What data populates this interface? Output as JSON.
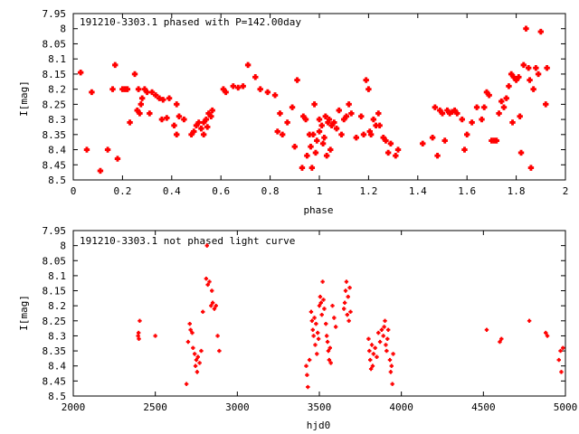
{
  "chart_data": [
    {
      "type": "scatter",
      "title": "191210-3303.1 phased with P=142.00day",
      "xlabel": "phase",
      "ylabel": "I[mag]",
      "xlim": [
        0,
        2
      ],
      "ylim": [
        8.5,
        7.95
      ],
      "y_inverted": true,
      "xticks": [
        "0",
        "0.2",
        "0.4",
        "0.6",
        "0.8",
        "1",
        "1.2",
        "1.4",
        "1.6",
        "1.8",
        "2"
      ],
      "yticks": [
        "7.95",
        "8",
        "8.05",
        "8.1",
        "8.15",
        "8.2",
        "8.25",
        "8.3",
        "8.35",
        "8.4",
        "8.45",
        "8.5"
      ],
      "marker_color": "#ff0000",
      "marker_size": "large",
      "points": [
        [
          0.03,
          8.145
        ],
        [
          0.055,
          8.4
        ],
        [
          0.075,
          8.21
        ],
        [
          0.11,
          8.47
        ],
        [
          0.14,
          8.4
        ],
        [
          0.16,
          8.2
        ],
        [
          0.17,
          8.12
        ],
        [
          0.18,
          8.43
        ],
        [
          0.2,
          8.2
        ],
        [
          0.21,
          8.2
        ],
        [
          0.22,
          8.2
        ],
        [
          0.23,
          8.31
        ],
        [
          0.25,
          8.15
        ],
        [
          0.26,
          8.27
        ],
        [
          0.265,
          8.2
        ],
        [
          0.27,
          8.28
        ],
        [
          0.275,
          8.25
        ],
        [
          0.28,
          8.23
        ],
        [
          0.29,
          8.2
        ],
        [
          0.3,
          8.21
        ],
        [
          0.31,
          8.28
        ],
        [
          0.32,
          8.21
        ],
        [
          0.335,
          8.22
        ],
        [
          0.35,
          8.23
        ],
        [
          0.36,
          8.3
        ],
        [
          0.365,
          8.235
        ],
        [
          0.38,
          8.295
        ],
        [
          0.39,
          8.23
        ],
        [
          0.41,
          8.32
        ],
        [
          0.42,
          8.25
        ],
        [
          0.42,
          8.35
        ],
        [
          0.43,
          8.29
        ],
        [
          0.45,
          8.3
        ],
        [
          0.48,
          8.35
        ],
        [
          0.49,
          8.34
        ],
        [
          0.5,
          8.32
        ],
        [
          0.51,
          8.31
        ],
        [
          0.52,
          8.33
        ],
        [
          0.53,
          8.35
        ],
        [
          0.53,
          8.31
        ],
        [
          0.54,
          8.3
        ],
        [
          0.545,
          8.325
        ],
        [
          0.55,
          8.28
        ],
        [
          0.56,
          8.29
        ],
        [
          0.565,
          8.27
        ],
        [
          0.61,
          8.2
        ],
        [
          0.62,
          8.21
        ],
        [
          0.65,
          8.19
        ],
        [
          0.67,
          8.195
        ],
        [
          0.69,
          8.19
        ],
        [
          0.71,
          8.12
        ],
        [
          0.74,
          8.16
        ],
        [
          0.76,
          8.2
        ],
        [
          0.79,
          8.21
        ],
        [
          0.82,
          8.22
        ],
        [
          0.83,
          8.34
        ],
        [
          0.84,
          8.28
        ],
        [
          0.85,
          8.35
        ],
        [
          0.87,
          8.31
        ],
        [
          0.89,
          8.26
        ],
        [
          0.9,
          8.39
        ],
        [
          0.91,
          8.17
        ],
        [
          0.93,
          8.46
        ],
        [
          0.935,
          8.29
        ],
        [
          0.945,
          8.3
        ],
        [
          0.95,
          8.42
        ],
        [
          0.96,
          8.35
        ],
        [
          0.965,
          8.39
        ],
        [
          0.97,
          8.46
        ],
        [
          0.975,
          8.35
        ],
        [
          0.98,
          8.25
        ],
        [
          0.985,
          8.41
        ],
        [
          0.99,
          8.37
        ],
        [
          1.0,
          8.34
        ],
        [
          1.0,
          8.3
        ],
        [
          1.01,
          8.32
        ],
        [
          1.015,
          8.38
        ],
        [
          1.02,
          8.36
        ],
        [
          1.025,
          8.29
        ],
        [
          1.03,
          8.42
        ],
        [
          1.035,
          8.31
        ],
        [
          1.04,
          8.3
        ],
        [
          1.045,
          8.4
        ],
        [
          1.05,
          8.32
        ],
        [
          1.06,
          8.31
        ],
        [
          1.07,
          8.33
        ],
        [
          1.08,
          8.27
        ],
        [
          1.09,
          8.35
        ],
        [
          1.1,
          8.3
        ],
        [
          1.11,
          8.29
        ],
        [
          1.12,
          8.25
        ],
        [
          1.13,
          8.28
        ],
        [
          1.15,
          8.36
        ],
        [
          1.17,
          8.29
        ],
        [
          1.18,
          8.35
        ],
        [
          1.19,
          8.17
        ],
        [
          1.2,
          8.2
        ],
        [
          1.205,
          8.34
        ],
        [
          1.21,
          8.35
        ],
        [
          1.22,
          8.3
        ],
        [
          1.23,
          8.32
        ],
        [
          1.24,
          8.28
        ],
        [
          1.245,
          8.32
        ],
        [
          1.26,
          8.36
        ],
        [
          1.27,
          8.37
        ],
        [
          1.28,
          8.41
        ],
        [
          1.29,
          8.38
        ],
        [
          1.31,
          8.42
        ],
        [
          1.32,
          8.4
        ],
        [
          1.42,
          8.38
        ],
        [
          1.46,
          8.36
        ],
        [
          1.47,
          8.26
        ],
        [
          1.48,
          8.42
        ],
        [
          1.49,
          8.27
        ],
        [
          1.5,
          8.28
        ],
        [
          1.51,
          8.37
        ],
        [
          1.52,
          8.27
        ],
        [
          1.53,
          8.28
        ],
        [
          1.54,
          8.275
        ],
        [
          1.55,
          8.27
        ],
        [
          1.56,
          8.28
        ],
        [
          1.58,
          8.3
        ],
        [
          1.59,
          8.4
        ],
        [
          1.6,
          8.35
        ],
        [
          1.62,
          8.31
        ],
        [
          1.64,
          8.26
        ],
        [
          1.66,
          8.3
        ],
        [
          1.67,
          8.26
        ],
        [
          1.68,
          8.21
        ],
        [
          1.69,
          8.22
        ],
        [
          1.7,
          8.37
        ],
        [
          1.71,
          8.37
        ],
        [
          1.72,
          8.37
        ],
        [
          1.73,
          8.28
        ],
        [
          1.74,
          8.24
        ],
        [
          1.75,
          8.26
        ],
        [
          1.76,
          8.23
        ],
        [
          1.77,
          8.19
        ],
        [
          1.78,
          8.15
        ],
        [
          1.785,
          8.31
        ],
        [
          1.79,
          8.16
        ],
        [
          1.8,
          8.17
        ],
        [
          1.81,
          8.16
        ],
        [
          1.815,
          8.29
        ],
        [
          1.82,
          8.41
        ],
        [
          1.83,
          8.12
        ],
        [
          1.84,
          8.0
        ],
        [
          1.85,
          8.13
        ],
        [
          1.855,
          8.17
        ],
        [
          1.86,
          8.46
        ],
        [
          1.87,
          8.2
        ],
        [
          1.88,
          8.13
        ],
        [
          1.89,
          8.15
        ],
        [
          1.9,
          8.01
        ],
        [
          1.92,
          8.25
        ],
        [
          1.925,
          8.13
        ]
      ]
    },
    {
      "type": "scatter",
      "title": "191210-3303.1 not phased light curve",
      "xlabel": "hjd0",
      "ylabel": "I[mag]",
      "xlim": [
        2000,
        5000
      ],
      "ylim": [
        8.5,
        7.95
      ],
      "y_inverted": true,
      "xticks": [
        "2000",
        "2500",
        "3000",
        "3500",
        "4000",
        "4500",
        "5000"
      ],
      "yticks": [
        "7.95",
        "8",
        "8.05",
        "8.1",
        "8.15",
        "8.2",
        "8.25",
        "8.3",
        "8.35",
        "8.4",
        "8.45",
        "8.5"
      ],
      "marker_color": "#ff0000",
      "marker_size": "small",
      "points": [
        [
          2395,
          8.3
        ],
        [
          2398,
          8.29
        ],
        [
          2400,
          8.31
        ],
        [
          2405,
          8.25
        ],
        [
          2500,
          8.3
        ],
        [
          2690,
          8.46
        ],
        [
          2700,
          8.32
        ],
        [
          2710,
          8.26
        ],
        [
          2715,
          8.28
        ],
        [
          2725,
          8.29
        ],
        [
          2730,
          8.34
        ],
        [
          2740,
          8.36
        ],
        [
          2745,
          8.4
        ],
        [
          2750,
          8.38
        ],
        [
          2755,
          8.42
        ],
        [
          2760,
          8.37
        ],
        [
          2770,
          8.39
        ],
        [
          2780,
          8.35
        ],
        [
          2790,
          8.22
        ],
        [
          2810,
          8.11
        ],
        [
          2815,
          8.0
        ],
        [
          2820,
          8.13
        ],
        [
          2830,
          8.12
        ],
        [
          2840,
          8.2
        ],
        [
          2845,
          8.15
        ],
        [
          2850,
          8.19
        ],
        [
          2860,
          8.21
        ],
        [
          2870,
          8.2
        ],
        [
          2880,
          8.3
        ],
        [
          2890,
          8.35
        ],
        [
          3420,
          8.4
        ],
        [
          3425,
          8.43
        ],
        [
          3430,
          8.47
        ],
        [
          3440,
          8.38
        ],
        [
          3450,
          8.22
        ],
        [
          3455,
          8.25
        ],
        [
          3460,
          8.28
        ],
        [
          3465,
          8.3
        ],
        [
          3470,
          8.24
        ],
        [
          3475,
          8.33
        ],
        [
          3480,
          8.26
        ],
        [
          3485,
          8.36
        ],
        [
          3490,
          8.29
        ],
        [
          3495,
          8.31
        ],
        [
          3500,
          8.2
        ],
        [
          3505,
          8.17
        ],
        [
          3510,
          8.19
        ],
        [
          3515,
          8.23
        ],
        [
          3520,
          8.12
        ],
        [
          3525,
          8.18
        ],
        [
          3530,
          8.21
        ],
        [
          3540,
          8.26
        ],
        [
          3545,
          8.3
        ],
        [
          3550,
          8.32
        ],
        [
          3555,
          8.35
        ],
        [
          3560,
          8.38
        ],
        [
          3565,
          8.34
        ],
        [
          3570,
          8.39
        ],
        [
          3580,
          8.2
        ],
        [
          3590,
          8.24
        ],
        [
          3600,
          8.27
        ],
        [
          3650,
          8.21
        ],
        [
          3655,
          8.19
        ],
        [
          3660,
          8.15
        ],
        [
          3665,
          8.12
        ],
        [
          3670,
          8.23
        ],
        [
          3675,
          8.17
        ],
        [
          3680,
          8.25
        ],
        [
          3685,
          8.14
        ],
        [
          3690,
          8.22
        ],
        [
          3800,
          8.31
        ],
        [
          3805,
          8.35
        ],
        [
          3810,
          8.38
        ],
        [
          3815,
          8.41
        ],
        [
          3820,
          8.33
        ],
        [
          3825,
          8.4
        ],
        [
          3830,
          8.36
        ],
        [
          3840,
          8.34
        ],
        [
          3850,
          8.37
        ],
        [
          3860,
          8.29
        ],
        [
          3870,
          8.32
        ],
        [
          3880,
          8.28
        ],
        [
          3890,
          8.3
        ],
        [
          3895,
          8.27
        ],
        [
          3900,
          8.25
        ],
        [
          3905,
          8.33
        ],
        [
          3910,
          8.35
        ],
        [
          3915,
          8.31
        ],
        [
          3920,
          8.28
        ],
        [
          3930,
          8.38
        ],
        [
          3935,
          8.42
        ],
        [
          3940,
          8.4
        ],
        [
          3945,
          8.46
        ],
        [
          3950,
          8.36
        ],
        [
          4520,
          8.28
        ],
        [
          4600,
          8.32
        ],
        [
          4610,
          8.31
        ],
        [
          4780,
          8.25
        ],
        [
          4880,
          8.29
        ],
        [
          4890,
          8.3
        ],
        [
          4960,
          8.38
        ],
        [
          4970,
          8.35
        ],
        [
          4975,
          8.42
        ],
        [
          4985,
          8.34
        ]
      ]
    }
  ]
}
